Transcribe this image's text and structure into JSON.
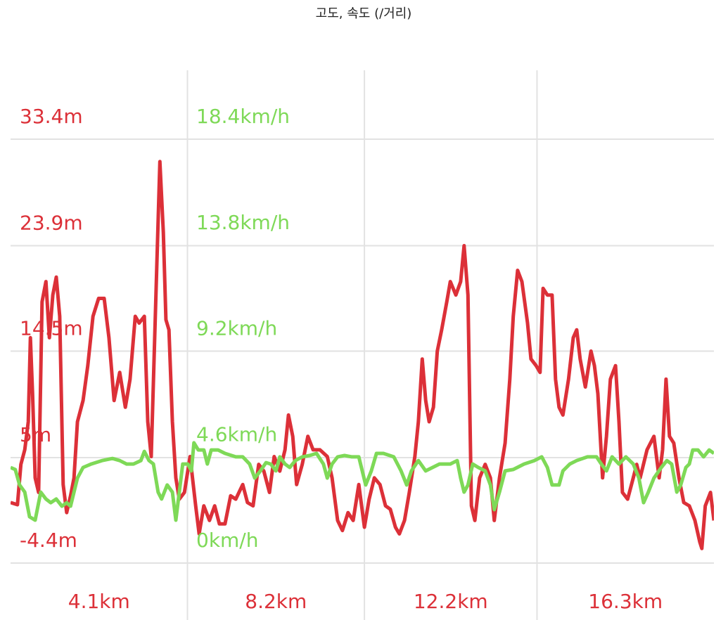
{
  "chart_data": {
    "type": "line",
    "title": "고도, 속도 (/거리)",
    "xlim": [
      0,
      16.3
    ],
    "xticks": [
      {
        "value": 4.1,
        "label": "4.1km"
      },
      {
        "value": 8.2,
        "label": "8.2km"
      },
      {
        "value": 12.2,
        "label": "12.2km"
      },
      {
        "value": 16.3,
        "label": "16.3km"
      }
    ],
    "ylim": [
      -4.4,
      33.4
    ],
    "yticks": [
      {
        "value": -4.4,
        "label": "-4.4m"
      },
      {
        "value": 5,
        "label": "5m"
      },
      {
        "value": 14.5,
        "label": "14.5m"
      },
      {
        "value": 23.9,
        "label": "23.9m"
      },
      {
        "value": 33.4,
        "label": "33.4m"
      }
    ],
    "y2lim": [
      0,
      18.4
    ],
    "y2ticks": [
      {
        "value": 0,
        "label": "0km/h"
      },
      {
        "value": 4.6,
        "label": "4.6km/h"
      },
      {
        "value": 9.2,
        "label": "9.2km/h"
      },
      {
        "value": 13.8,
        "label": "13.8km/h"
      },
      {
        "value": 18.4,
        "label": "18.4km/h"
      }
    ],
    "grid": true,
    "series": [
      {
        "color": "#dc3038",
        "x": [
          0,
          0.16,
          0.24,
          0.33,
          0.41,
          0.46,
          0.51,
          0.57,
          0.65,
          0.73,
          0.82,
          0.9,
          0.98,
          1.06,
          1.14,
          1.22,
          1.3,
          1.39,
          1.47,
          1.55,
          1.68,
          1.79,
          1.91,
          2.04,
          2.17,
          2.28,
          2.4,
          2.53,
          2.66,
          2.77,
          2.89,
          2.98,
          3.1,
          3.18,
          3.26,
          3.37,
          3.46,
          3.54,
          3.6,
          3.67,
          3.75,
          3.83,
          3.91,
          4.03,
          4.16,
          4.29,
          4.37,
          4.48,
          4.61,
          4.73,
          4.84,
          4.97,
          5.1,
          5.22,
          5.38,
          5.49,
          5.62,
          5.75,
          5.87,
          6.0,
          6.11,
          6.24,
          6.36,
          6.44,
          6.54,
          6.63,
          6.76,
          6.89,
          7.01,
          7.17,
          7.34,
          7.45,
          7.58,
          7.69,
          7.82,
          7.94,
          8.07,
          8.2,
          8.31,
          8.43,
          8.56,
          8.69,
          8.8,
          8.92,
          9.01,
          9.13,
          9.24,
          9.37,
          9.45,
          9.54,
          9.62,
          9.7,
          9.8,
          9.89,
          9.99,
          10.11,
          10.19,
          10.32,
          10.43,
          10.51,
          10.6,
          10.68,
          10.76,
          10.87,
          11.0,
          11.12,
          11.21,
          11.33,
          11.46,
          11.57,
          11.65,
          11.75,
          11.85,
          11.98,
          12.06,
          12.18,
          12.27,
          12.34,
          12.44,
          12.55,
          12.63,
          12.71,
          12.8,
          12.93,
          13.04,
          13.12,
          13.2,
          13.32,
          13.45,
          13.53,
          13.61,
          13.72,
          13.81,
          13.9,
          14.02,
          14.1,
          14.18,
          14.3,
          14.43,
          14.51,
          14.59,
          14.75,
          14.91,
          15.03,
          15.11,
          15.19,
          15.27,
          15.37,
          15.49,
          15.6,
          15.73,
          15.86,
          15.97,
          16.02,
          16.1,
          16.22,
          16.3
        ],
        "values": [
          1.0,
          0.8,
          4.4,
          5.7,
          8.2,
          15.7,
          10.7,
          3.2,
          1.9,
          18.9,
          20.7,
          15.7,
          19.5,
          21.1,
          17.6,
          2.6,
          0.1,
          1.6,
          3.2,
          8.2,
          10.1,
          13.2,
          17.6,
          19.2,
          19.2,
          15.7,
          10.1,
          12.6,
          9.5,
          12.0,
          17.6,
          17.0,
          17.6,
          8.2,
          5.1,
          19.5,
          31.4,
          25.1,
          17.3,
          16.4,
          8.2,
          3.2,
          1.3,
          1.9,
          5.1,
          0.7,
          -1.8,
          0.7,
          -0.6,
          0.7,
          -0.9,
          -0.9,
          1.6,
          1.3,
          2.6,
          1.0,
          0.7,
          4.4,
          3.8,
          1.9,
          5.1,
          3.8,
          5.7,
          8.8,
          6.9,
          2.6,
          4.4,
          6.9,
          5.7,
          5.7,
          5.1,
          3.2,
          -0.6,
          -1.5,
          0.1,
          -0.6,
          2.6,
          -1.2,
          1.3,
          3.2,
          2.6,
          0.7,
          0.4,
          -1.2,
          -1.8,
          -0.6,
          1.9,
          5.1,
          8.2,
          13.8,
          10.1,
          8.2,
          9.5,
          14.5,
          16.4,
          18.9,
          20.7,
          19.5,
          20.7,
          23.9,
          19.5,
          0.7,
          -0.6,
          3.2,
          4.4,
          3.2,
          -0.6,
          3.2,
          6.3,
          12.0,
          17.6,
          21.7,
          20.7,
          17.0,
          13.8,
          13.2,
          12.6,
          20.1,
          19.5,
          19.5,
          12.0,
          9.5,
          8.8,
          12.0,
          15.7,
          16.4,
          13.8,
          11.3,
          14.5,
          13.2,
          10.7,
          3.2,
          6.9,
          12.0,
          13.2,
          8.2,
          1.9,
          1.3,
          3.2,
          4.4,
          3.2,
          5.7,
          6.9,
          3.2,
          5.7,
          12.0,
          6.9,
          6.3,
          3.2,
          1.0,
          0.7,
          -0.6,
          -2.5,
          -3.1,
          0.7,
          1.9,
          -0.6
        ]
      },
      {
        "color": "#7ed957",
        "axis": "y2",
        "x": [
          0,
          0.11,
          0.21,
          0.33,
          0.44,
          0.57,
          0.7,
          0.82,
          0.93,
          1.06,
          1.19,
          1.3,
          1.39,
          1.47,
          1.55,
          1.68,
          1.87,
          2.12,
          2.36,
          2.53,
          2.69,
          2.85,
          3.02,
          3.1,
          3.21,
          3.31,
          3.42,
          3.5,
          3.63,
          3.75,
          3.83,
          3.91,
          3.99,
          4.11,
          4.19,
          4.25,
          4.35,
          4.48,
          4.56,
          4.65,
          4.81,
          4.97,
          5.22,
          5.38,
          5.54,
          5.66,
          5.79,
          5.92,
          6.03,
          6.15,
          6.24,
          6.36,
          6.47,
          6.6,
          6.76,
          6.93,
          7.09,
          7.25,
          7.34,
          7.45,
          7.58,
          7.74,
          7.91,
          8.07,
          8.23,
          8.36,
          8.48,
          8.64,
          8.88,
          9.05,
          9.18,
          9.29,
          9.45,
          9.62,
          9.78,
          9.94,
          10.19,
          10.35,
          10.43,
          10.51,
          10.6,
          10.71,
          10.84,
          11.0,
          11.12,
          11.21,
          11.33,
          11.46,
          11.65,
          11.9,
          12.14,
          12.31,
          12.44,
          12.55,
          12.71,
          12.8,
          12.96,
          13.12,
          13.37,
          13.58,
          13.69,
          13.81,
          13.94,
          14.1,
          14.26,
          14.43,
          14.56,
          14.67,
          14.78,
          14.91,
          15.08,
          15.21,
          15.32,
          15.44,
          15.53,
          15.65,
          15.73,
          15.81,
          15.93,
          16.06,
          16.19,
          16.3
        ],
        "values": [
          4.15,
          4.06,
          3.39,
          3.08,
          2.01,
          1.86,
          3.08,
          2.78,
          2.62,
          2.78,
          2.47,
          2.62,
          2.47,
          3.08,
          3.69,
          4.15,
          4.3,
          4.45,
          4.54,
          4.45,
          4.3,
          4.3,
          4.45,
          4.85,
          4.45,
          4.3,
          3.08,
          2.78,
          3.39,
          3.08,
          1.86,
          3.08,
          4.3,
          4.3,
          4.0,
          5.22,
          4.91,
          4.91,
          4.3,
          4.91,
          4.91,
          4.76,
          4.61,
          4.61,
          4.3,
          3.69,
          4.0,
          4.36,
          4.3,
          4.0,
          4.61,
          4.3,
          4.15,
          4.45,
          4.61,
          4.67,
          4.76,
          4.3,
          3.69,
          4.3,
          4.61,
          4.67,
          4.61,
          4.61,
          3.39,
          4.0,
          4.76,
          4.76,
          4.61,
          4.0,
          3.39,
          4.0,
          4.45,
          4.0,
          4.15,
          4.3,
          4.3,
          4.45,
          3.69,
          3.08,
          3.39,
          4.3,
          4.15,
          4.0,
          3.39,
          2.32,
          3.08,
          4.0,
          4.06,
          4.3,
          4.45,
          4.61,
          4.15,
          3.39,
          3.39,
          4.0,
          4.3,
          4.45,
          4.61,
          4.61,
          4.3,
          4.0,
          4.61,
          4.3,
          4.61,
          4.3,
          3.69,
          2.62,
          3.08,
          3.69,
          4.15,
          4.45,
          4.3,
          3.08,
          3.39,
          4.15,
          4.3,
          4.91,
          4.91,
          4.61,
          4.91,
          4.76
        ]
      }
    ]
  }
}
